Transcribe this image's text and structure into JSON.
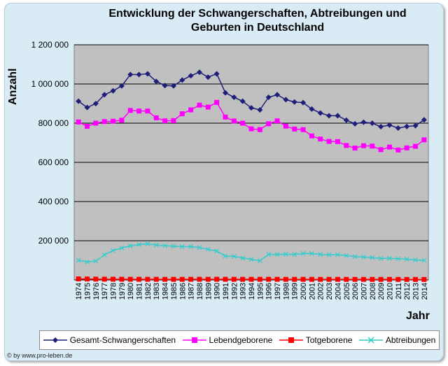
{
  "chart_data": {
    "type": "line",
    "title": "Entwicklung der Schwangerschaften, Abtreibungen und Geburten in   Deutschland",
    "title_lines": [
      "Entwicklung der Schwangerschaften, Abtreibungen und",
      "Geburten in   Deutschland"
    ],
    "ylabel": "Anzahl",
    "xlabel": "Jahr",
    "ylim": [
      0,
      1200000
    ],
    "yticks": [
      0,
      200000,
      400000,
      600000,
      800000,
      1000000,
      1200000
    ],
    "ytick_labels": [
      "",
      "200 000",
      "400 000",
      "600 000",
      "800 000",
      "1 000 000",
      "1 200 000"
    ],
    "grid": true,
    "legend": "bottom",
    "x": [
      "1974",
      "1975",
      "1976",
      "1977",
      "1978",
      "1979",
      "1980",
      "1981",
      "1982",
      "1983",
      "1984",
      "1985",
      "1986",
      "1987",
      "1988",
      "1989",
      "1990",
      "1991",
      "1992",
      "1993",
      "1994",
      "1995",
      "1996",
      "1997",
      "1998",
      "1999",
      "2000",
      "2001",
      "2002",
      "2003",
      "2004",
      "2005",
      "2006",
      "2007",
      "2008",
      "2009",
      "2010",
      "2011",
      "2012",
      "2013",
      "2014"
    ],
    "series": [
      {
        "name": "Gesamt-Schwangerschaften",
        "color": "#1f1f7a",
        "marker": "diamond",
        "values": [
          912000,
          880000,
          900000,
          945000,
          965000,
          990000,
          1048000,
          1048000,
          1052000,
          1013000,
          992000,
          990000,
          1020000,
          1042000,
          1060000,
          1035000,
          1052000,
          955000,
          932000,
          912000,
          878000,
          868000,
          932000,
          945000,
          920000,
          908000,
          905000,
          872000,
          852000,
          838000,
          838000,
          815000,
          797000,
          805000,
          800000,
          782000,
          790000,
          775000,
          783000,
          787000,
          817000
        ]
      },
      {
        "name": "Lebendgeborene",
        "color": "#ff00ff",
        "marker": "square",
        "values": [
          806000,
          784000,
          800000,
          808000,
          810000,
          815000,
          865000,
          862000,
          862000,
          827000,
          812000,
          813000,
          848000,
          868000,
          892000,
          882000,
          906000,
          831000,
          811000,
          800000,
          771000,
          767000,
          797000,
          812000,
          785000,
          770000,
          767000,
          735000,
          719000,
          707000,
          706000,
          686000,
          673000,
          685000,
          683000,
          665000,
          678000,
          663000,
          674000,
          682000,
          715000
        ]
      },
      {
        "name": "Totgeborene",
        "color": "#ff0000",
        "marker": "square",
        "values": [
          5200,
          4600,
          4100,
          3700,
          3600,
          3400,
          3300,
          3200,
          3100,
          3000,
          2900,
          2900,
          3000,
          3100,
          3200,
          3200,
          3300,
          3200,
          3100,
          3000,
          3000,
          3000,
          3200,
          3100,
          2900,
          2900,
          2900,
          2800,
          2700,
          2700,
          2800,
          2700,
          2600,
          2600,
          2600,
          2600,
          2600,
          2500,
          2400,
          2400,
          2300
        ]
      },
      {
        "name": "Abtreibungen",
        "color": "#33cccc",
        "marker": "x",
        "values": [
          100000,
          92000,
          96000,
          128000,
          150000,
          163000,
          174000,
          180000,
          184000,
          178000,
          175000,
          172000,
          170000,
          170000,
          165000,
          156000,
          147000,
          122000,
          120000,
          112000,
          105000,
          98000,
          130000,
          130000,
          131000,
          130000,
          135000,
          135000,
          130000,
          128000,
          129000,
          124000,
          119000,
          117000,
          114000,
          110000,
          110000,
          108000,
          106000,
          102000,
          100000
        ]
      }
    ]
  },
  "footer": {
    "copyright_symbol": "©",
    "text": "by www.pro-leben.de"
  }
}
